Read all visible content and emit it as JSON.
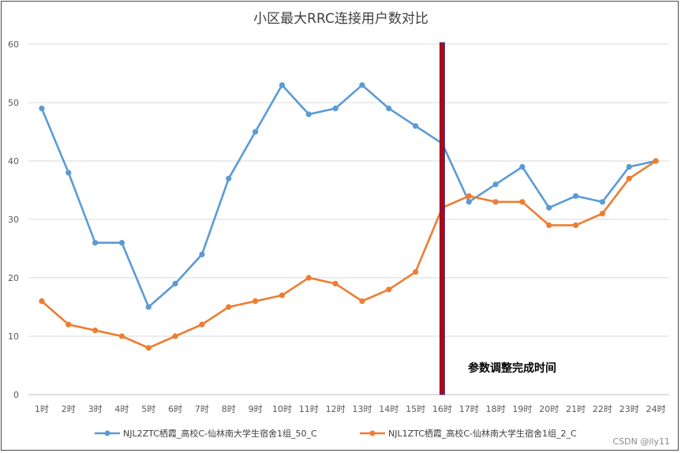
{
  "chart_data": {
    "type": "line",
    "title": "小区最大RRC连接用户数对比",
    "categories": [
      "1时",
      "2时",
      "3时",
      "4时",
      "5时",
      "6时",
      "7时",
      "8时",
      "9时",
      "10时",
      "11时",
      "12时",
      "13时",
      "14时",
      "15时",
      "16时",
      "17时",
      "18时",
      "19时",
      "20时",
      "21时",
      "22时",
      "23时",
      "24时"
    ],
    "series": [
      {
        "name": "NJL2ZTC栖霞_高校C-仙林南大学生宿舍1组_50_C",
        "color": "#5B9BD5",
        "values": [
          49,
          38,
          26,
          26,
          15,
          19,
          24,
          37,
          45,
          53,
          48,
          49,
          53,
          49,
          46,
          43,
          33,
          36,
          39,
          32,
          34,
          33,
          39,
          40
        ]
      },
      {
        "name": "NJL1ZTC栖霞_高校C-仙林南大学生宿舍1组_2_C",
        "color": "#ED7D31",
        "values": [
          16,
          12,
          11,
          10,
          8,
          10,
          12,
          15,
          16,
          17,
          20,
          19,
          16,
          18,
          21,
          32,
          34,
          33,
          33,
          29,
          29,
          31,
          37,
          40
        ]
      }
    ],
    "ylim": [
      0,
      60
    ],
    "yticks": [
      0,
      10,
      20,
      30,
      40,
      50,
      60
    ],
    "grid": true,
    "legend": "bottom",
    "annotation": {
      "text": "参数调整完成时间",
      "at_category": "16时",
      "marker_color": "#C00000"
    }
  },
  "watermark": "CSDN @lly11"
}
